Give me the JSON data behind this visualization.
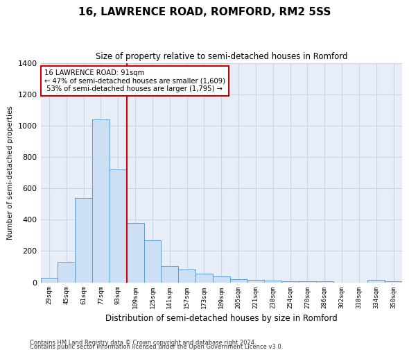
{
  "title": "16, LAWRENCE ROAD, ROMFORD, RM2 5SS",
  "subtitle": "Size of property relative to semi-detached houses in Romford",
  "xlabel": "Distribution of semi-detached houses by size in Romford",
  "ylabel": "Number of semi-detached properties",
  "footnote1": "Contains HM Land Registry data © Crown copyright and database right 2024.",
  "footnote2": "Contains public sector information licensed under the Open Government Licence v3.0.",
  "bar_labels": [
    "29sqm",
    "45sqm",
    "61sqm",
    "77sqm",
    "93sqm",
    "109sqm",
    "125sqm",
    "141sqm",
    "157sqm",
    "173sqm",
    "189sqm",
    "205sqm",
    "221sqm",
    "238sqm",
    "254sqm",
    "270sqm",
    "286sqm",
    "302sqm",
    "318sqm",
    "334sqm",
    "350sqm"
  ],
  "bar_values": [
    30,
    130,
    540,
    1040,
    720,
    380,
    270,
    105,
    80,
    55,
    40,
    20,
    15,
    10,
    5,
    5,
    5,
    0,
    0,
    15,
    5
  ],
  "bar_color": "#ccdff5",
  "bar_edge_color": "#5b9bd5",
  "property_label": "16 LAWRENCE ROAD: 91sqm",
  "pct_smaller": 47,
  "n_smaller": 1609,
  "pct_larger": 53,
  "n_larger": 1795,
  "vline_x": 4.5,
  "vline_color": "#cc0000",
  "annotation_box_color": "#cc0000",
  "ylim": [
    0,
    1400
  ],
  "yticks": [
    0,
    200,
    400,
    600,
    800,
    1000,
    1200,
    1400
  ],
  "grid_color": "#c8d4e8",
  "plot_bg_color": "#e8eef8"
}
